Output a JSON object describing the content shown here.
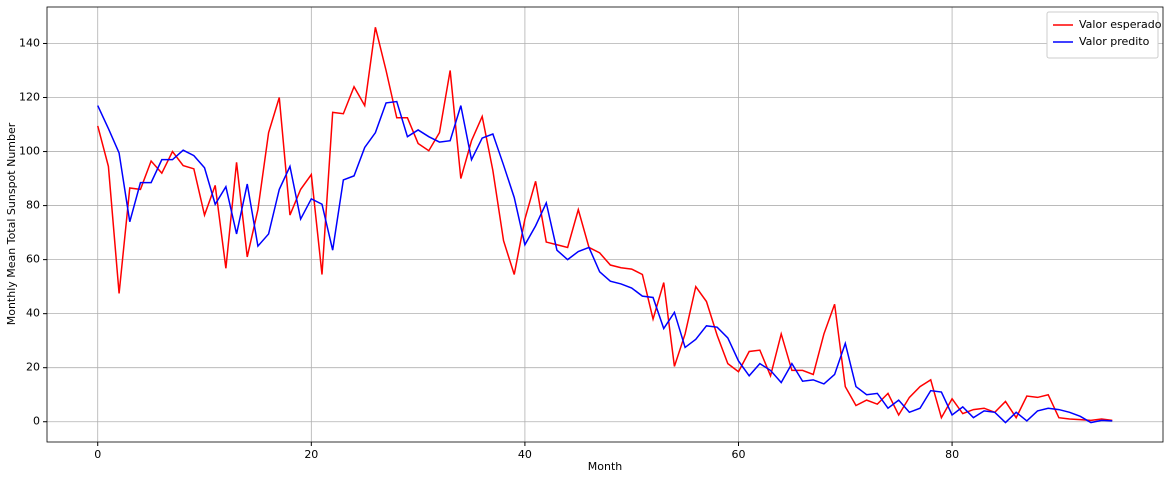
{
  "chart_data": {
    "type": "line",
    "xlabel": "Month",
    "ylabel": "Monthly Mean Total Sunspot Number",
    "x": [
      0,
      1,
      2,
      3,
      4,
      5,
      6,
      7,
      8,
      9,
      10,
      11,
      12,
      13,
      14,
      15,
      16,
      17,
      18,
      19,
      20,
      21,
      22,
      23,
      24,
      25,
      26,
      27,
      28,
      29,
      30,
      31,
      32,
      33,
      34,
      35,
      36,
      37,
      38,
      39,
      40,
      41,
      42,
      43,
      44,
      45,
      46,
      47,
      48,
      49,
      50,
      51,
      52,
      53,
      54,
      55,
      56,
      57,
      58,
      59,
      60,
      61,
      62,
      63,
      64,
      65,
      66,
      67,
      68,
      69,
      70,
      71,
      72,
      73,
      74,
      75,
      76,
      77,
      78,
      79,
      80,
      81,
      82,
      83,
      84,
      85,
      86,
      87,
      88,
      89,
      90,
      91,
      92,
      93,
      94,
      95
    ],
    "series": [
      {
        "name": "Valor esperado",
        "color": "#ff0000",
        "values": [
          109.5,
          94.5,
          47.5,
          86.5,
          86,
          96.5,
          92,
          100,
          94.8,
          93.6,
          76.5,
          87.5,
          56.8,
          96,
          61,
          78.5,
          107,
          120,
          76.5,
          86,
          91.5,
          54.5,
          114.5,
          114,
          124,
          117,
          146,
          130,
          112.5,
          112.5,
          103,
          100.3,
          107,
          130,
          90,
          104,
          113,
          93,
          67,
          54.5,
          75,
          89,
          66.5,
          65.5,
          64.5,
          78.5,
          64.5,
          62.5,
          58,
          57,
          56.5,
          54.5,
          38,
          51.5,
          20.5,
          32.5,
          50,
          44.5,
          32,
          21.5,
          18.5,
          26,
          26.5,
          17,
          32.5,
          19,
          19,
          17.5,
          32.5,
          43.5,
          13,
          6,
          8,
          6.5,
          10.5,
          2.5,
          9,
          13,
          15.5,
          1.5,
          8.5,
          3,
          4.5,
          5,
          3.5,
          7.5,
          1.5,
          9.5,
          9,
          10,
          1.5,
          1,
          0.8,
          0.5,
          1,
          0.5
        ]
      },
      {
        "name": "Valor predito",
        "color": "#0000ff",
        "values": [
          117,
          108.5,
          99.5,
          74,
          88.5,
          88.5,
          97,
          97,
          100.5,
          98.5,
          94,
          80.5,
          87,
          69.5,
          88,
          65,
          69.5,
          86,
          94.5,
          75,
          82.5,
          80.5,
          63.5,
          89.5,
          91,
          101.5,
          107,
          118,
          118.5,
          105.5,
          108,
          105.5,
          103.5,
          104,
          117,
          97,
          105,
          106.5,
          95,
          83,
          65.5,
          72.5,
          81,
          63.5,
          60,
          63,
          64.5,
          55.5,
          52,
          51,
          49.5,
          46.5,
          46,
          34.5,
          40.5,
          27.5,
          30.5,
          35.5,
          35,
          31,
          22.5,
          17,
          21.5,
          19,
          14.5,
          21.5,
          15,
          15.5,
          14,
          17.5,
          29,
          13,
          10,
          10.5,
          5,
          8,
          3.5,
          5,
          11.5,
          11,
          2.5,
          5.5,
          1.5,
          4,
          3.5,
          -0.3,
          3.5,
          0.3,
          4,
          5,
          4.5,
          3.5,
          2,
          -0.3,
          0.5,
          0.3
        ]
      }
    ],
    "xlim": [
      -4.75,
      99.75
    ],
    "xticks": [
      0,
      20,
      40,
      60,
      80
    ],
    "ylim": [
      -7.5,
      153.5
    ],
    "yticks": [
      0,
      20,
      40,
      60,
      80,
      100,
      120,
      140
    ],
    "grid": true,
    "legend": "upper right"
  }
}
